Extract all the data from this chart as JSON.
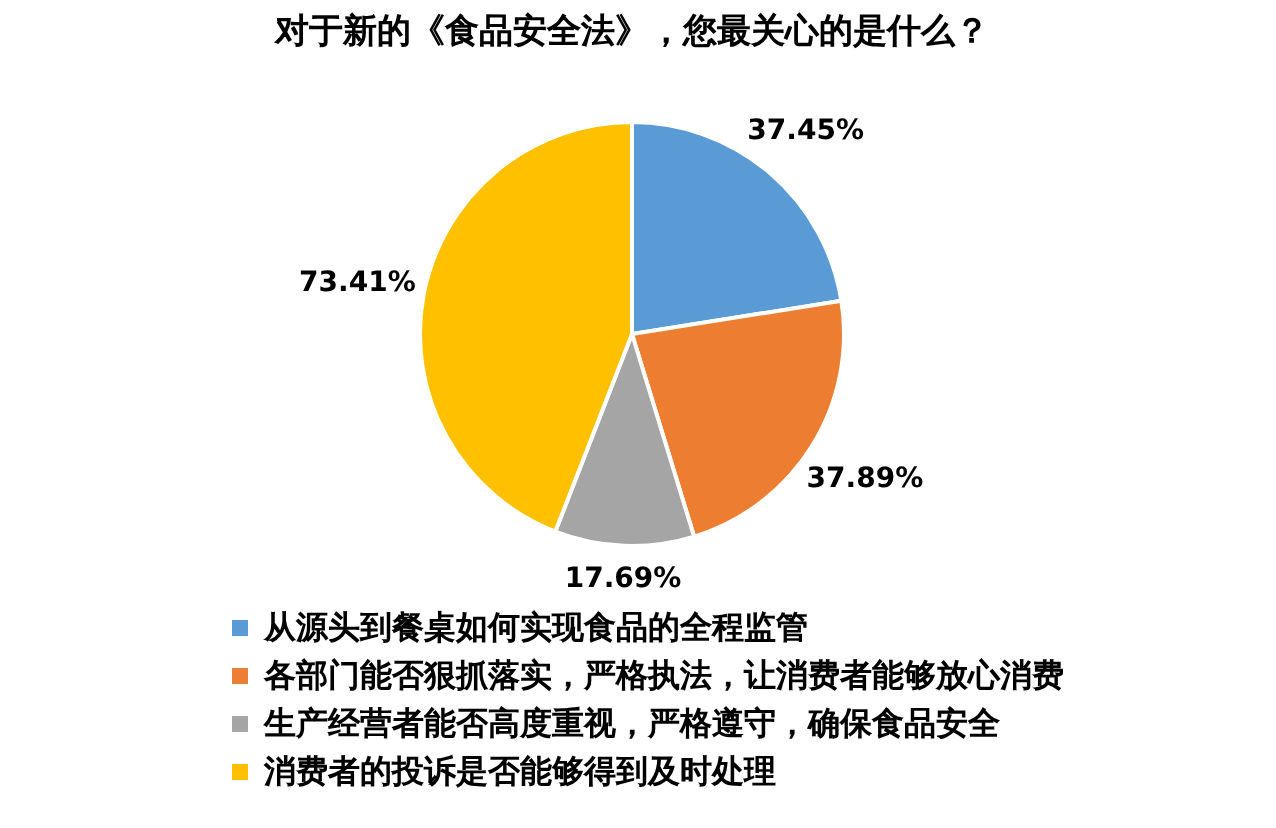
{
  "chart_data": {
    "type": "pie",
    "title": "对于新的《食品安全法》，您最关心的是什么？",
    "categories": [
      "从源头到餐桌如何实现食品的全程监管",
      "各部门能否狠抓落实，严格执法，让消费者能够放心消费",
      "生产经营者能否高度重视，严格遵守，确保食品安全",
      "消费者的投诉是否能够得到及时处理"
    ],
    "values": [
      37.45,
      37.89,
      17.69,
      73.41
    ],
    "value_labels": [
      "37.45%",
      "37.89%",
      "17.69%",
      "73.41%"
    ],
    "colors": [
      "#5b9bd5",
      "#ed7d31",
      "#a5a5a5",
      "#ffc000"
    ],
    "legend": "bottom"
  }
}
